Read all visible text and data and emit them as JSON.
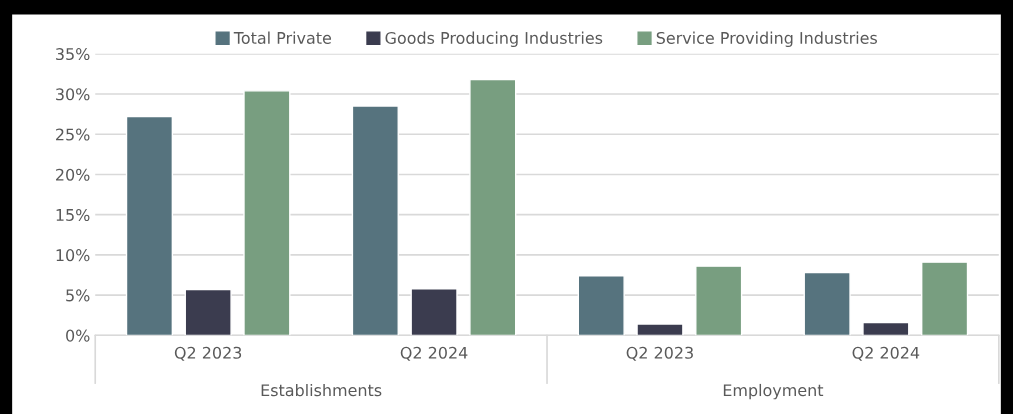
{
  "chart_data": {
    "type": "bar",
    "categories": [
      "Q2 2023",
      "Q2 2024",
      "Q2 2023",
      "Q2 2024"
    ],
    "series": [
      {
        "name": "Total Private",
        "color": "#56737e",
        "values": [
          27.2,
          28.5,
          7.4,
          7.8
        ]
      },
      {
        "name": "Goods Producing Industries",
        "color": "#3b3c4f",
        "values": [
          5.7,
          5.8,
          1.4,
          1.6
        ]
      },
      {
        "name": "Service Providing Industries",
        "color": "#789e80",
        "values": [
          30.4,
          31.8,
          8.6,
          9.1
        ]
      }
    ],
    "annotations": [
      "Establishments",
      "Employment"
    ],
    "ylim": [
      0,
      35
    ],
    "yticks": [
      {
        "value": 0,
        "label": "0%"
      },
      {
        "value": 5,
        "label": "5%"
      },
      {
        "value": 10,
        "label": "10%"
      },
      {
        "value": 15,
        "label": "15%"
      },
      {
        "value": 20,
        "label": "20%"
      },
      {
        "value": 25,
        "label": "25%"
      },
      {
        "value": 30,
        "label": "30%"
      },
      {
        "value": 35,
        "label": "35%"
      }
    ],
    "grid": "y",
    "legend": "top"
  }
}
